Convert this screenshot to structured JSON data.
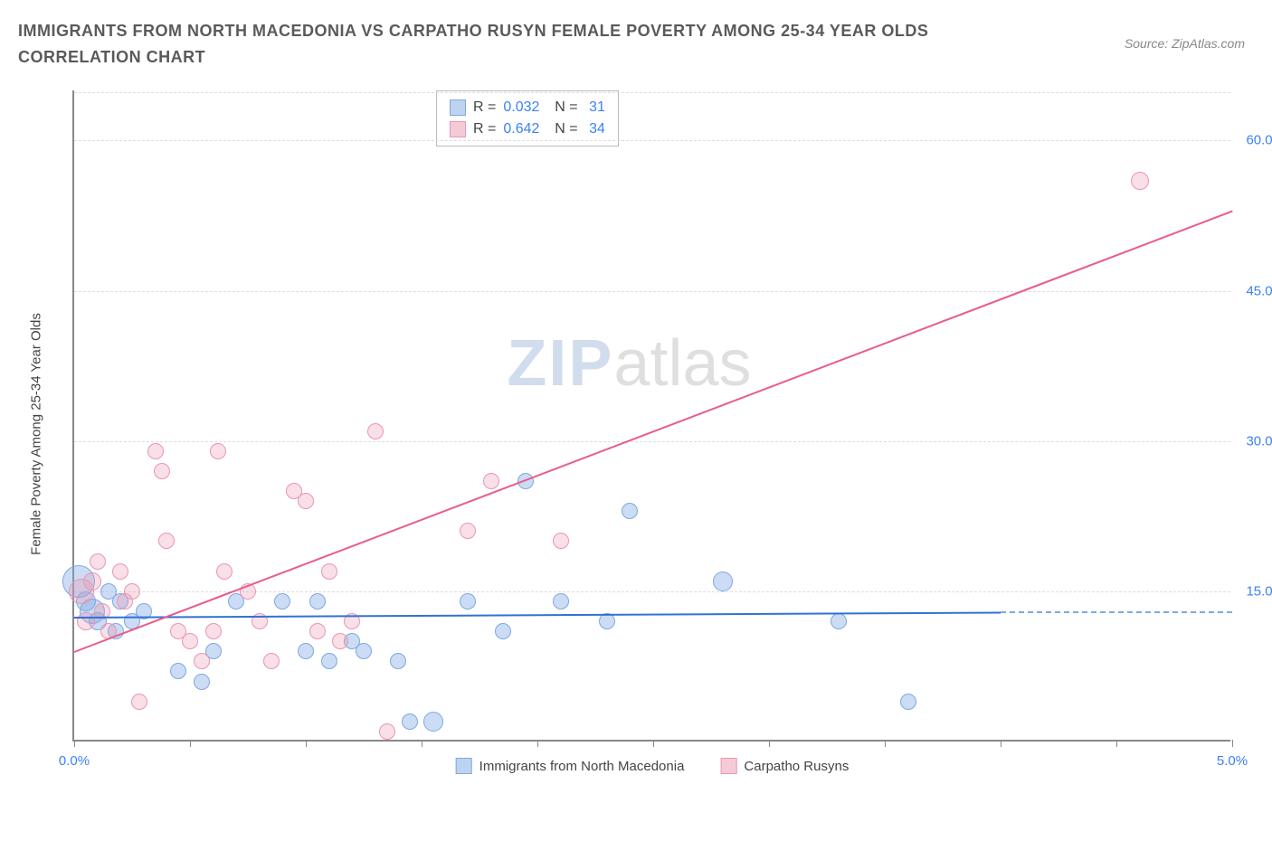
{
  "title": "IMMIGRANTS FROM NORTH MACEDONIA VS CARPATHO RUSYN FEMALE POVERTY AMONG 25-34 YEAR OLDS CORRELATION CHART",
  "source": "Source: ZipAtlas.com",
  "ylabel": "Female Poverty Among 25-34 Year Olds",
  "watermark_zip": "ZIP",
  "watermark_atlas": "atlas",
  "chart": {
    "type": "scatter",
    "xlim": [
      0,
      5
    ],
    "ylim": [
      0,
      65
    ],
    "x_ticks": [
      0,
      0.5,
      1.0,
      1.5,
      2.0,
      2.5,
      3.0,
      3.5,
      4.0,
      4.5,
      5.0
    ],
    "x_tick_labels": {
      "0": "0.0%",
      "5": "5.0%"
    },
    "y_gridlines": [
      15,
      30,
      45,
      60
    ],
    "y_tick_labels": [
      "15.0%",
      "30.0%",
      "45.0%",
      "60.0%"
    ],
    "background_color": "#ffffff",
    "grid_color": "#dddddd",
    "axis_color": "#888888",
    "tick_label_color": "#3b82f6",
    "series": [
      {
        "name": "Immigrants from North Macedonia",
        "color_fill": "rgba(125,168,227,0.4)",
        "color_stroke": "#7da8e3",
        "class": "blue",
        "R": "0.032",
        "N": "31",
        "trend": {
          "x1": 0,
          "y1": 12.5,
          "x2": 4.0,
          "y2": 13.0,
          "dash_from": 4.0,
          "dash_to": 5.0,
          "dash_y": 13.0
        },
        "points": [
          {
            "x": 0.02,
            "y": 16,
            "r": 18
          },
          {
            "x": 0.05,
            "y": 14,
            "r": 11
          },
          {
            "x": 0.08,
            "y": 13,
            "r": 14
          },
          {
            "x": 0.1,
            "y": 12,
            "r": 10
          },
          {
            "x": 0.15,
            "y": 15,
            "r": 9
          },
          {
            "x": 0.18,
            "y": 11,
            "r": 9
          },
          {
            "x": 0.2,
            "y": 14,
            "r": 9
          },
          {
            "x": 0.25,
            "y": 12,
            "r": 9
          },
          {
            "x": 0.3,
            "y": 13,
            "r": 9
          },
          {
            "x": 0.45,
            "y": 7,
            "r": 9
          },
          {
            "x": 0.55,
            "y": 6,
            "r": 9
          },
          {
            "x": 0.6,
            "y": 9,
            "r": 9
          },
          {
            "x": 0.7,
            "y": 14,
            "r": 9
          },
          {
            "x": 0.9,
            "y": 14,
            "r": 9
          },
          {
            "x": 1.0,
            "y": 9,
            "r": 9
          },
          {
            "x": 1.05,
            "y": 14,
            "r": 9
          },
          {
            "x": 1.1,
            "y": 8,
            "r": 9
          },
          {
            "x": 1.2,
            "y": 10,
            "r": 9
          },
          {
            "x": 1.25,
            "y": 9,
            "r": 9
          },
          {
            "x": 1.4,
            "y": 8,
            "r": 9
          },
          {
            "x": 1.45,
            "y": 2,
            "r": 9
          },
          {
            "x": 1.55,
            "y": 2,
            "r": 11
          },
          {
            "x": 1.7,
            "y": 14,
            "r": 9
          },
          {
            "x": 1.85,
            "y": 11,
            "r": 9
          },
          {
            "x": 1.95,
            "y": 26,
            "r": 9
          },
          {
            "x": 2.1,
            "y": 14,
            "r": 9
          },
          {
            "x": 2.3,
            "y": 12,
            "r": 9
          },
          {
            "x": 2.4,
            "y": 23,
            "r": 9
          },
          {
            "x": 2.8,
            "y": 16,
            "r": 11
          },
          {
            "x": 3.3,
            "y": 12,
            "r": 9
          },
          {
            "x": 3.6,
            "y": 4,
            "r": 9
          }
        ]
      },
      {
        "name": "Carpatho Rusyns",
        "color_fill": "rgba(235,150,175,0.3)",
        "color_stroke": "#eb96af",
        "class": "pink",
        "R": "0.642",
        "N": "34",
        "trend": {
          "x1": 0,
          "y1": 9,
          "x2": 5.0,
          "y2": 53
        },
        "points": [
          {
            "x": 0.03,
            "y": 15,
            "r": 14
          },
          {
            "x": 0.05,
            "y": 12,
            "r": 10
          },
          {
            "x": 0.08,
            "y": 16,
            "r": 10
          },
          {
            "x": 0.1,
            "y": 18,
            "r": 9
          },
          {
            "x": 0.12,
            "y": 13,
            "r": 9
          },
          {
            "x": 0.15,
            "y": 11,
            "r": 9
          },
          {
            "x": 0.2,
            "y": 17,
            "r": 9
          },
          {
            "x": 0.22,
            "y": 14,
            "r": 9
          },
          {
            "x": 0.25,
            "y": 15,
            "r": 9
          },
          {
            "x": 0.28,
            "y": 4,
            "r": 9
          },
          {
            "x": 0.35,
            "y": 29,
            "r": 9
          },
          {
            "x": 0.38,
            "y": 27,
            "r": 9
          },
          {
            "x": 0.4,
            "y": 20,
            "r": 9
          },
          {
            "x": 0.45,
            "y": 11,
            "r": 9
          },
          {
            "x": 0.5,
            "y": 10,
            "r": 9
          },
          {
            "x": 0.55,
            "y": 8,
            "r": 9
          },
          {
            "x": 0.6,
            "y": 11,
            "r": 9
          },
          {
            "x": 0.62,
            "y": 29,
            "r": 9
          },
          {
            "x": 0.65,
            "y": 17,
            "r": 9
          },
          {
            "x": 0.75,
            "y": 15,
            "r": 9
          },
          {
            "x": 0.8,
            "y": 12,
            "r": 9
          },
          {
            "x": 0.85,
            "y": 8,
            "r": 9
          },
          {
            "x": 0.95,
            "y": 25,
            "r": 9
          },
          {
            "x": 1.0,
            "y": 24,
            "r": 9
          },
          {
            "x": 1.05,
            "y": 11,
            "r": 9
          },
          {
            "x": 1.1,
            "y": 17,
            "r": 9
          },
          {
            "x": 1.15,
            "y": 10,
            "r": 9
          },
          {
            "x": 1.2,
            "y": 12,
            "r": 9
          },
          {
            "x": 1.3,
            "y": 31,
            "r": 9
          },
          {
            "x": 1.35,
            "y": 1,
            "r": 9
          },
          {
            "x": 1.7,
            "y": 21,
            "r": 9
          },
          {
            "x": 1.8,
            "y": 26,
            "r": 9
          },
          {
            "x": 2.1,
            "y": 20,
            "r": 9
          },
          {
            "x": 4.6,
            "y": 56,
            "r": 10
          }
        ]
      }
    ]
  },
  "legend_bottom": [
    {
      "label": "Immigrants from North Macedonia",
      "class": "blue"
    },
    {
      "label": "Carpatho Rusyns",
      "class": "pink"
    }
  ]
}
